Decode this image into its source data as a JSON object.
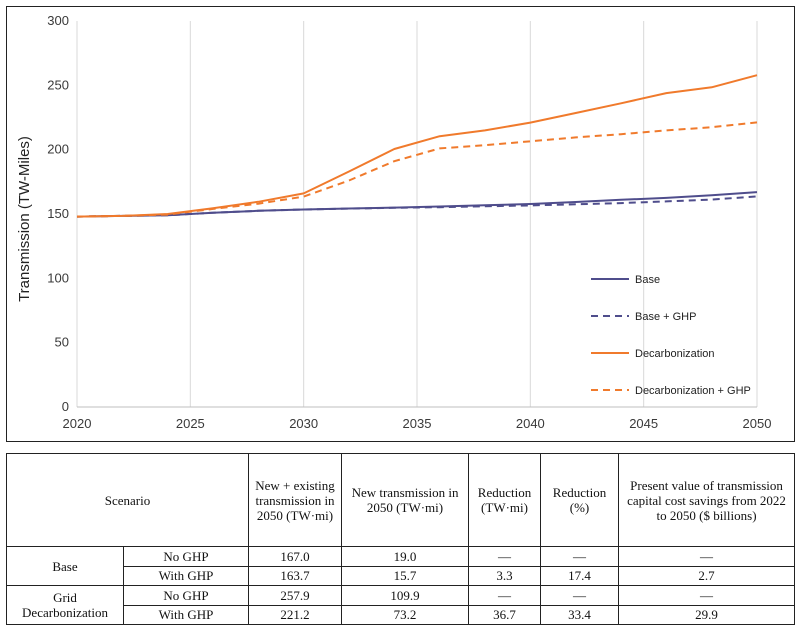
{
  "chart_data": {
    "type": "line",
    "title": "",
    "xlabel": "",
    "ylabel": "Transmission (TW-Miles)",
    "xlim": [
      2020,
      2050
    ],
    "ylim": [
      0,
      300
    ],
    "xticks": [
      2020,
      2025,
      2030,
      2035,
      2040,
      2045,
      2050
    ],
    "yticks": [
      0,
      50,
      100,
      150,
      200,
      250,
      300
    ],
    "grid": {
      "x": true,
      "y": false
    },
    "legend": "right",
    "series": [
      {
        "name": "Base",
        "color": "#4f4d8c",
        "dashed": false,
        "x": [
          2020,
          2022,
          2024,
          2026,
          2028,
          2030,
          2032,
          2034,
          2036,
          2038,
          2040,
          2042,
          2044,
          2046,
          2048,
          2050
        ],
        "y": [
          148,
          148.5,
          149,
          151,
          152.5,
          153.5,
          154.3,
          155,
          155.8,
          156.8,
          157.8,
          159.3,
          161,
          162.5,
          164.5,
          167
        ]
      },
      {
        "name": "Base + GHP",
        "color": "#4f4d8c",
        "dashed": true,
        "x": [
          2020,
          2022,
          2024,
          2026,
          2028,
          2030,
          2032,
          2034,
          2036,
          2038,
          2040,
          2042,
          2044,
          2046,
          2048,
          2050
        ],
        "y": [
          148,
          148.5,
          149,
          151,
          152.5,
          153.5,
          154.2,
          154.8,
          155.3,
          156,
          156.7,
          157.5,
          158.5,
          159.8,
          161.2,
          163.7
        ]
      },
      {
        "name": "Decarbonization",
        "color": "#f07a2c",
        "dashed": false,
        "x": [
          2020,
          2022,
          2024,
          2026,
          2028,
          2030,
          2032,
          2034,
          2036,
          2038,
          2040,
          2042,
          2044,
          2046,
          2048,
          2050
        ],
        "y": [
          148,
          148.5,
          150,
          154.5,
          159.5,
          166,
          183,
          200.5,
          210.5,
          215,
          221,
          228.5,
          236,
          244,
          248.5,
          257.9
        ]
      },
      {
        "name": "Decarbonization + GHP",
        "color": "#f07a2c",
        "dashed": true,
        "x": [
          2020,
          2022,
          2024,
          2026,
          2028,
          2030,
          2032,
          2034,
          2036,
          2038,
          2040,
          2042,
          2044,
          2046,
          2048,
          2050
        ],
        "y": [
          148,
          148.5,
          149.5,
          154,
          158,
          163.5,
          176,
          191,
          201,
          203.5,
          206.5,
          209.5,
          212,
          215,
          217.5,
          221.2
        ]
      }
    ]
  },
  "table": {
    "headers": {
      "scenario": "Scenario",
      "total": "New + existing transmission in 2050 (TW·mi)",
      "new": "New transmission in 2050 (TW·mi)",
      "reduction_twmi": "Reduction (TW·mi)",
      "reduction_pct": "Reduction (%)",
      "savings": "Present value of transmission capital cost savings from 2022 to 2050 ($ billions)"
    },
    "groups": [
      {
        "name": "Base",
        "rows": [
          {
            "label": "No GHP",
            "total": "167.0",
            "new": "19.0",
            "reduction_twmi": "—",
            "reduction_pct": "—",
            "savings": "—"
          },
          {
            "label": "With GHP",
            "total": "163.7",
            "new": "15.7",
            "reduction_twmi": "3.3",
            "reduction_pct": "17.4",
            "savings": "2.7"
          }
        ]
      },
      {
        "name": "Grid Decarbonization",
        "rows": [
          {
            "label": "No GHP",
            "total": "257.9",
            "new": "109.9",
            "reduction_twmi": "—",
            "reduction_pct": "—",
            "savings": "—"
          },
          {
            "label": "With GHP",
            "total": "221.2",
            "new": "73.2",
            "reduction_twmi": "36.7",
            "reduction_pct": "33.4",
            "savings": "29.9"
          }
        ]
      }
    ]
  }
}
